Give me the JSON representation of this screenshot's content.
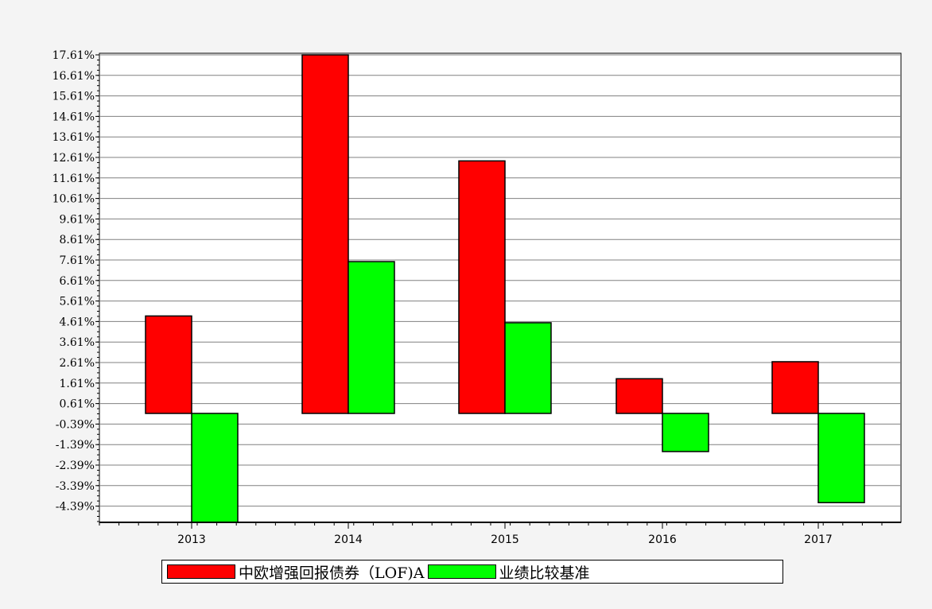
{
  "chart_data": {
    "type": "bar",
    "categories": [
      "2013",
      "2014",
      "2015",
      "2016",
      "2017"
    ],
    "series": [
      {
        "name": "中欧增强回报债券（LOF)A",
        "color": "#ff0000",
        "values": [
          4.88,
          17.61,
          12.44,
          1.82,
          2.65
        ]
      },
      {
        "name": "业绩比较基准",
        "color": "#00ff00",
        "values": [
          -5.3,
          7.53,
          4.55,
          -1.73,
          -4.22
        ]
      }
    ],
    "y_ticks": [
      "17.61%",
      "16.61%",
      "15.61%",
      "14.61%",
      "13.61%",
      "12.61%",
      "11.61%",
      "10.61%",
      "9.61%",
      "8.61%",
      "7.61%",
      "6.61%",
      "5.61%",
      "4.61%",
      "3.61%",
      "2.61%",
      "1.61%",
      "0.61%",
      "-0.39%",
      "-1.39%",
      "-2.39%",
      "-3.39%",
      "-4.39%"
    ],
    "y_tick_values": [
      17.61,
      16.61,
      15.61,
      14.61,
      13.61,
      12.61,
      11.61,
      10.61,
      9.61,
      8.61,
      7.61,
      6.61,
      5.61,
      4.61,
      3.61,
      2.61,
      1.61,
      0.61,
      -0.39,
      -1.39,
      -2.39,
      -3.39,
      -4.39
    ],
    "ylim": [
      -5.3,
      17.61
    ],
    "grid": true,
    "legend_position": "bottom"
  }
}
